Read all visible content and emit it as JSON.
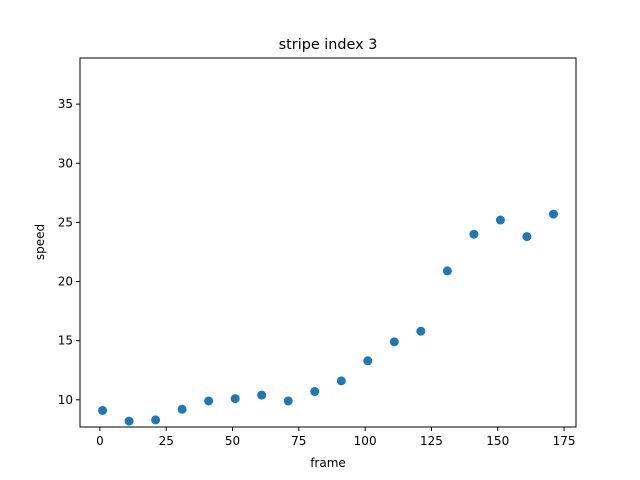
{
  "chart_data": {
    "type": "scatter",
    "title": "stripe index 3",
    "xlabel": "frame",
    "ylabel": "speed",
    "xlim": [
      -7.5,
      179.5
    ],
    "ylim": [
      7.7,
      38.9
    ],
    "grid": false,
    "x_ticks": [
      0,
      25,
      50,
      75,
      100,
      125,
      150,
      175
    ],
    "y_ticks": [
      10,
      15,
      20,
      25,
      30,
      35
    ],
    "marker_color": "#1f77b4",
    "series": [
      {
        "x": [
          1,
          11,
          21,
          31,
          41,
          51,
          61,
          71,
          81,
          91,
          101,
          111,
          121,
          131,
          141,
          151,
          161,
          171
        ],
        "y": [
          9.1,
          8.2,
          8.3,
          9.2,
          9.9,
          10.1,
          10.4,
          9.9,
          10.7,
          11.6,
          13.3,
          14.9,
          15.8,
          20.9,
          24.0,
          25.2,
          23.8,
          25.7
        ]
      }
    ]
  }
}
